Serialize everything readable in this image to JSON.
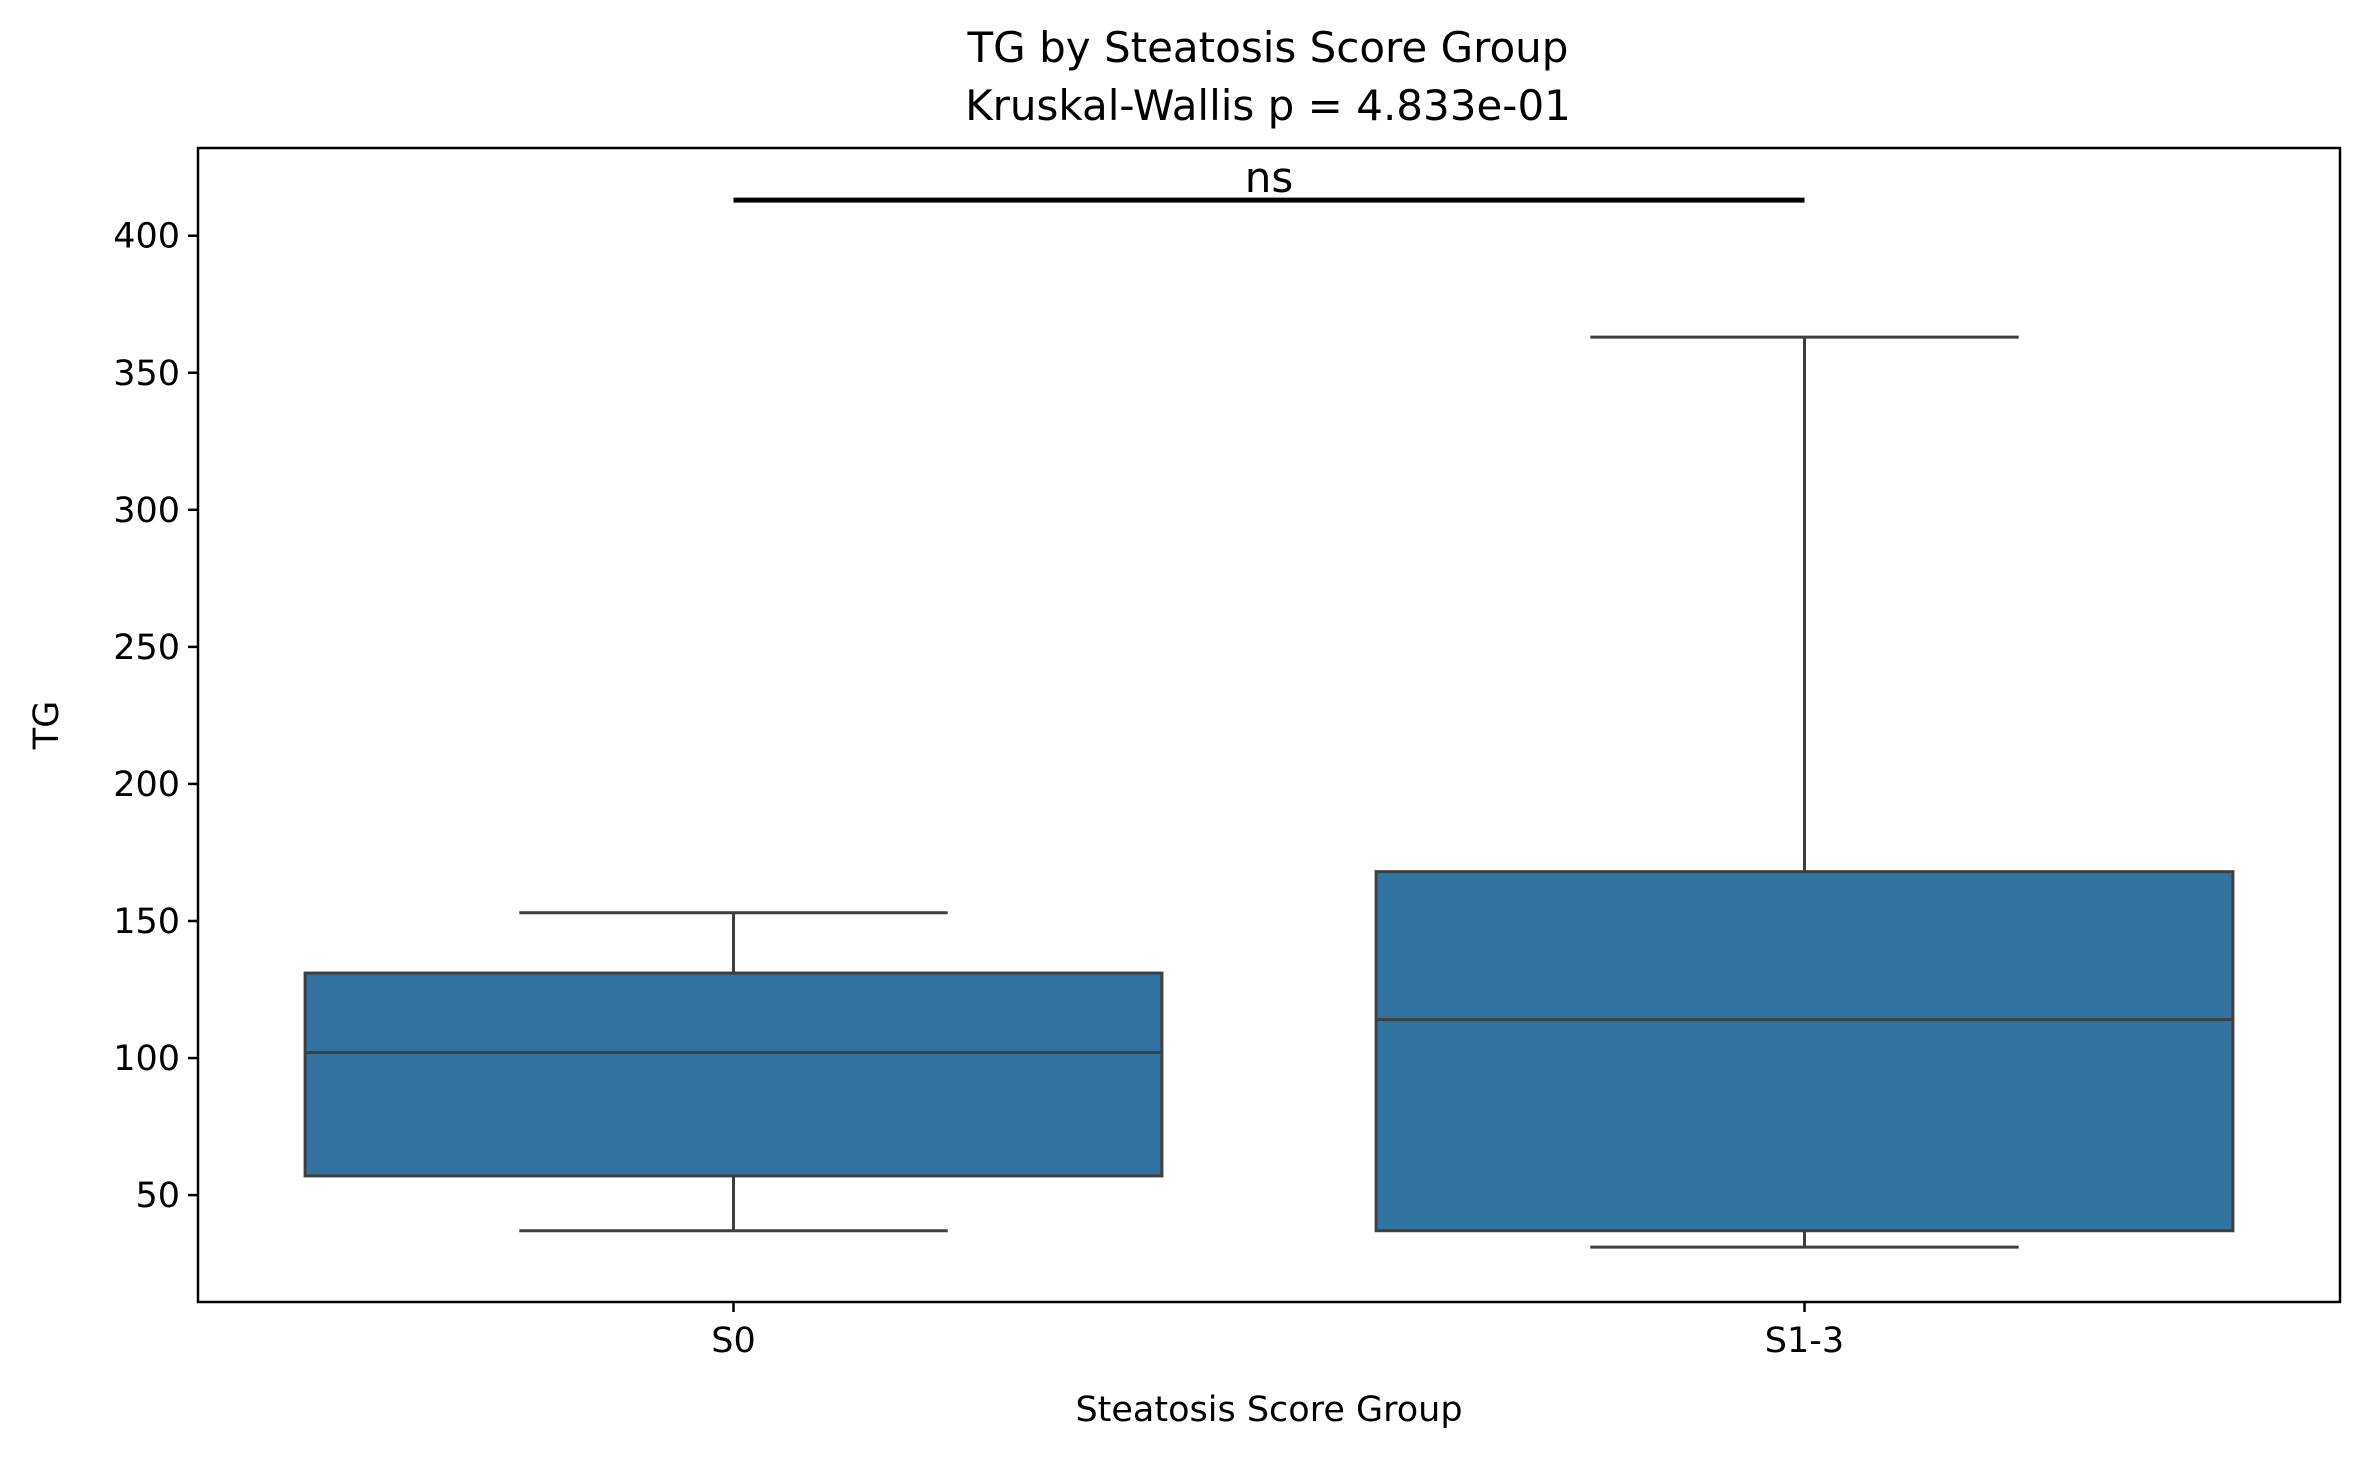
{
  "chart_data": {
    "type": "box",
    "title": "TG by Steatosis Score Group",
    "subtitle": "Kruskal-Wallis p = 4.833e-01",
    "xlabel": "Steatosis Score Group",
    "ylabel": "TG",
    "categories": [
      "S0",
      "S1-3"
    ],
    "boxes": [
      {
        "category": "S0",
        "whisker_low": 37,
        "q1": 57,
        "median": 102,
        "q3": 131,
        "whisker_high": 153
      },
      {
        "category": "S1-3",
        "whisker_low": 31,
        "q1": 37,
        "median": 114,
        "q3": 168,
        "whisker_high": 363
      }
    ],
    "ylim": [
      11,
      432
    ],
    "yticks": [
      50,
      100,
      150,
      200,
      250,
      300,
      350,
      400
    ],
    "box_color": "#3274a1",
    "edge_color": "#3f3f3f",
    "significance": {
      "from": "S0",
      "to": "S1-3",
      "label": "ns",
      "y": 413
    }
  }
}
